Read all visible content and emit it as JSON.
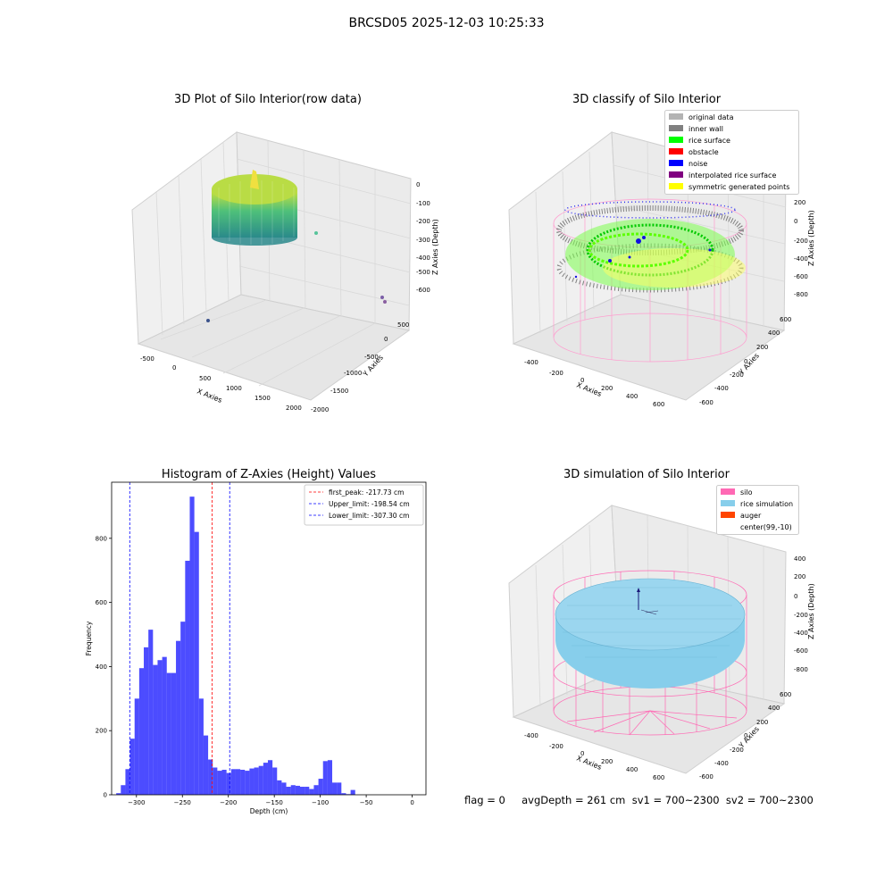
{
  "figure": {
    "suptitle": "BRCSD05 2025-12-03 10:25:33",
    "footer": "flag = 0     avgDepth = 261 cm  sv1 = 700~2300  sv2 = 700~2300"
  },
  "panel1": {
    "title": "3D Plot of Silo Interior(row data)",
    "xlabel": "X Axies",
    "ylabel": "Y Axies",
    "zlabel": "Z Axies (Depth)",
    "xticks": [
      "-500",
      "0",
      "500",
      "1000",
      "1500",
      "2000"
    ],
    "yticks": [
      "500",
      "0",
      "-500",
      "-1000",
      "-1500",
      "-2000"
    ],
    "zticks": [
      "0",
      "-100",
      "-200",
      "-300",
      "-400",
      "-500",
      "-600"
    ]
  },
  "panel2": {
    "title": "3D classify of Silo Interior",
    "xlabel": "X Axies",
    "ylabel": "Y Axies",
    "zlabel": "Z Axies (Depth)",
    "xticks": [
      "-400",
      "-200",
      "0",
      "200",
      "400",
      "600"
    ],
    "yticks": [
      "600",
      "400",
      "200",
      "0",
      "-200",
      "-400",
      "-600"
    ],
    "zticks": [
      "200",
      "0",
      "-200",
      "-400",
      "-600",
      "-800"
    ],
    "legend": [
      {
        "label": "original data",
        "color": "#b3b3b3"
      },
      {
        "label": "inner wall",
        "color": "#808080"
      },
      {
        "label": "rice surface",
        "color": "#00ff00"
      },
      {
        "label": "obstacle",
        "color": "#ff0000"
      },
      {
        "label": "noise",
        "color": "#0000ff"
      },
      {
        "label": "interpolated rice surface",
        "color": "#800080"
      },
      {
        "label": "symmetric generated points",
        "color": "#ffff00"
      }
    ]
  },
  "panel4": {
    "title": "3D simulation of Silo Interior",
    "xlabel": "X Axies",
    "ylabel": "Y Axies",
    "zlabel": "Z Axies (Depth)",
    "xticks": [
      "-400",
      "-200",
      "0",
      "200",
      "400",
      "600"
    ],
    "yticks": [
      "600",
      "400",
      "200",
      "0",
      "-200",
      "-400",
      "-600"
    ],
    "zticks": [
      "400",
      "200",
      "0",
      "-200",
      "-400",
      "-600",
      "-800"
    ],
    "legend": [
      {
        "label": "silo",
        "color": "#ff69b4"
      },
      {
        "label": "rice simulation",
        "color": "#87ceeb"
      },
      {
        "label": "auger",
        "color": "#ff4500"
      },
      {
        "label": "center(99,-10)",
        "color": ""
      }
    ]
  },
  "chart_data": {
    "type": "bar",
    "title": "Histogram of Z-Axies (Height) Values",
    "xlabel": "Depth (cm)",
    "ylabel": "Frequency",
    "xlim": [
      -327,
      15
    ],
    "ylim": [
      0,
      975
    ],
    "xticks": [
      -300,
      -250,
      -200,
      -150,
      -100,
      -50,
      0
    ],
    "yticks": [
      0,
      200,
      400,
      600,
      800
    ],
    "bar_color": "#0000ff",
    "bin_edges_start": -322,
    "bin_width": 5,
    "values": [
      5,
      30,
      80,
      175,
      300,
      395,
      460,
      515,
      405,
      420,
      430,
      380,
      380,
      480,
      540,
      730,
      930,
      820,
      300,
      185,
      110,
      85,
      75,
      78,
      68,
      80,
      80,
      78,
      75,
      82,
      85,
      90,
      100,
      108,
      85,
      45,
      38,
      25,
      30,
      28,
      25,
      25,
      18,
      30,
      50,
      105,
      108,
      38,
      38,
      5,
      2,
      15
    ],
    "vlines": [
      {
        "label": "first_peak: -217.73 cm",
        "x": -217.73,
        "color": "#ff0000"
      },
      {
        "label": "Upper_limit: -198.54 cm",
        "x": -198.54,
        "color": "#0000ff"
      },
      {
        "label": "Lower_limit: -307.30 cm",
        "x": -307.3,
        "color": "#0000ff"
      }
    ],
    "legend_position": "top-right"
  }
}
